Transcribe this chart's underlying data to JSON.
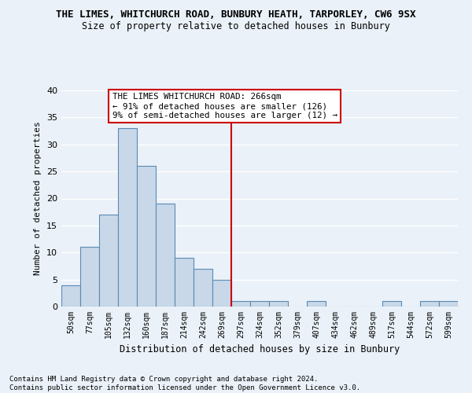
{
  "title": "THE LIMES, WHITCHURCH ROAD, BUNBURY HEATH, TARPORLEY, CW6 9SX",
  "subtitle": "Size of property relative to detached houses in Bunbury",
  "xlabel": "Distribution of detached houses by size in Bunbury",
  "ylabel": "Number of detached properties",
  "footnote": "Contains HM Land Registry data © Crown copyright and database right 2024.\nContains public sector information licensed under the Open Government Licence v3.0.",
  "bar_color": "#c8d8e8",
  "bar_edge_color": "#5a8ab5",
  "categories": [
    "50sqm",
    "77sqm",
    "105sqm",
    "132sqm",
    "160sqm",
    "187sqm",
    "214sqm",
    "242sqm",
    "269sqm",
    "297sqm",
    "324sqm",
    "352sqm",
    "379sqm",
    "407sqm",
    "434sqm",
    "462sqm",
    "489sqm",
    "517sqm",
    "544sqm",
    "572sqm",
    "599sqm"
  ],
  "values": [
    4,
    11,
    17,
    33,
    26,
    19,
    9,
    7,
    5,
    1,
    1,
    1,
    0,
    1,
    0,
    0,
    0,
    1,
    0,
    1,
    1
  ],
  "ylim": [
    0,
    40
  ],
  "yticks": [
    0,
    5,
    10,
    15,
    20,
    25,
    30,
    35,
    40
  ],
  "vline_x": 8.5,
  "vline_color": "#cc0000",
  "annotation_title": "THE LIMES WHITCHURCH ROAD: 266sqm",
  "annotation_line1": "← 91% of detached houses are smaller (126)",
  "annotation_line2": "9% of semi-detached houses are larger (12) →",
  "annotation_box_color": "#ffffff",
  "annotation_box_edge": "#cc0000",
  "background_color": "#eaf1f8",
  "grid_color": "#ffffff"
}
